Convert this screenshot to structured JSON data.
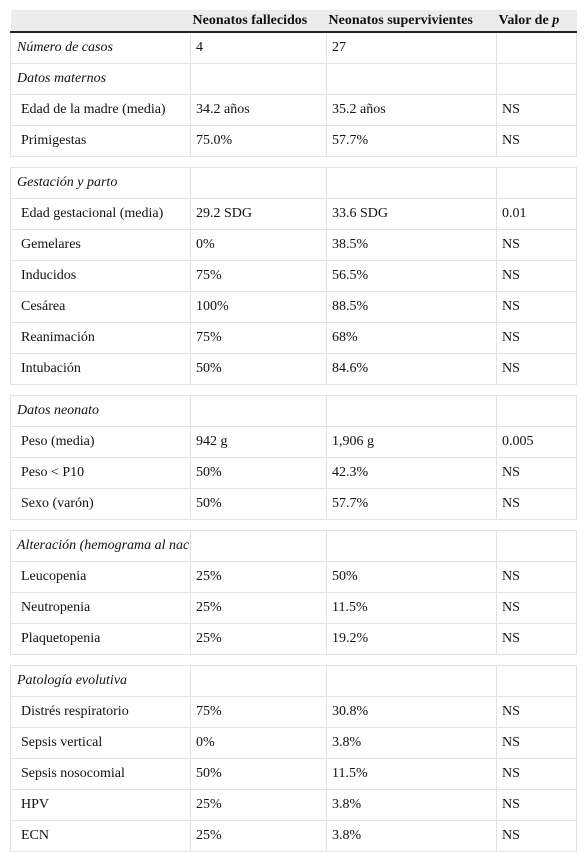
{
  "table": {
    "header": {
      "columns": [
        "Neonatos fallecidos",
        "Neonatos supervivientes"
      ],
      "p_column": {
        "text": "Valor de",
        "variable": "p"
      }
    },
    "first_row": [
      "Número de casos",
      "4",
      "27"
    ],
    "sections": [
      {
        "title": "Datos maternos",
        "rows": [
          [
            "Edad de la madre (media)",
            "34.2 años",
            "35.2 años",
            "NS"
          ],
          [
            "Primigestas",
            "75.0%",
            "57.7%",
            "NS"
          ]
        ]
      },
      {
        "title": "Gestación y parto",
        "rows": [
          [
            "Edad gestacional (media)",
            "29.2 SDG",
            "33.6 SDG",
            "0.01"
          ],
          [
            "Gemelares",
            "0%",
            "38.5%",
            "NS"
          ],
          [
            "Inducidos",
            "75%",
            "56.5%",
            "NS"
          ],
          [
            "Cesárea",
            "100%",
            "88.5%",
            "NS"
          ],
          [
            "Reanimación",
            "75%",
            "68%",
            "NS"
          ],
          [
            "Intubación",
            "50%",
            "84.6%",
            "NS"
          ]
        ]
      },
      {
        "title": "Datos neonato",
        "rows": [
          [
            "Peso (media)",
            "942 g",
            "1,906 g",
            "0.005"
          ],
          [
            "Peso < P10",
            "50%",
            "42.3%",
            "NS"
          ],
          [
            "Sexo (varón)",
            "50%",
            "57.7%",
            "NS"
          ]
        ]
      },
      {
        "title": "Alteración (hemograma al nacimiento)",
        "rows": [
          [
            "Leucopenia",
            "25%",
            "50%",
            "NS"
          ],
          [
            "Neutropenia",
            "25%",
            "11.5%",
            "NS"
          ],
          [
            "Plaquetopenia",
            "25%",
            "19.2%",
            "NS"
          ]
        ]
      },
      {
        "title": "Patología evolutiva",
        "rows": [
          [
            "Distrés respiratorio",
            "75%",
            "30.8%",
            "NS"
          ],
          [
            "Sepsis vertical",
            "0%",
            "3.8%",
            "NS"
          ],
          [
            "Sepsis nosocomial",
            "50%",
            "11.5%",
            "NS"
          ],
          [
            "HPV",
            "25%",
            "3.8%",
            "NS"
          ],
          [
            "ECN",
            "25%",
            "3.8%",
            "NS"
          ]
        ]
      }
    ]
  }
}
